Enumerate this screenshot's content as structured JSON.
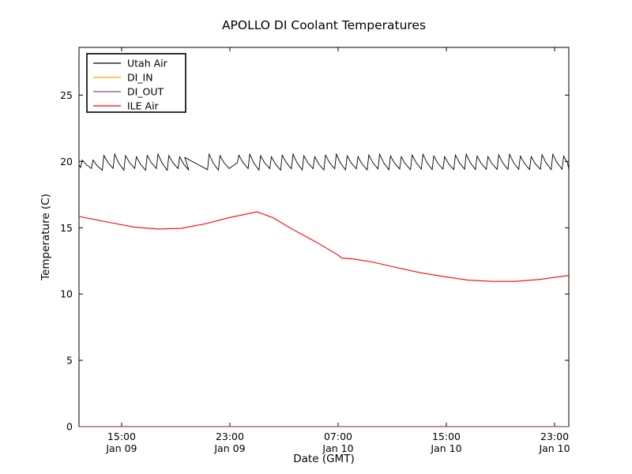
{
  "title": "APOLLO DI Coolant Temperatures",
  "axes": {
    "x": {
      "label": "Date (GMT)",
      "unit": "hours since Jan 09 00:00 GMT",
      "lim": [
        11.85,
        48.05
      ],
      "ticks": [
        {
          "t": 15,
          "time": "15:00",
          "date": "Jan 09"
        },
        {
          "t": 23,
          "time": "23:00",
          "date": "Jan 09"
        },
        {
          "t": 31,
          "time": "07:00",
          "date": "Jan 10"
        },
        {
          "t": 39,
          "time": "15:00",
          "date": "Jan 10"
        },
        {
          "t": 47,
          "time": "23:00",
          "date": "Jan 10"
        }
      ]
    },
    "y": {
      "label": "Temperature (C)",
      "lim": [
        0,
        28.6
      ],
      "ticks": [
        0,
        5,
        10,
        15,
        20,
        25
      ]
    }
  },
  "legend": {
    "position": "upper-left",
    "border_color": "#000000",
    "background": "#ffffff"
  },
  "chart_data": {
    "type": "line",
    "title": "APOLLO DI Coolant Temperatures",
    "xlabel": "Date (GMT)",
    "ylabel": "Temperature (C)",
    "xlim_hours": [
      11.85,
      48.05
    ],
    "ylim": [
      0,
      28.6
    ],
    "grid": false,
    "legend_position": "upper-left",
    "series": [
      {
        "name": "Utah Air",
        "color": "#000000",
        "style": "thermostat-sawtooth",
        "sawtooth": {
          "t_start": 11.85,
          "t_end": 48.05,
          "period_h": 0.8,
          "trough": 19.4,
          "peak": 20.45,
          "start_value": 19.75,
          "pauses": [
            {
              "from": 19.55,
              "to": 21.35,
              "type": "decline"
            },
            {
              "from": 22.9,
              "to": 23.55,
              "type": "rise"
            }
          ]
        },
        "summary": "oscillates ~19.4-20.5 C around 20 C for entire record"
      },
      {
        "name": "DI_IN",
        "color": "#ffa500",
        "style": "flat-zero",
        "points": [
          [
            11.85,
            0
          ],
          [
            48.05,
            0
          ]
        ],
        "summary": "flat at 0 C along bottom axis"
      },
      {
        "name": "DI_OUT",
        "color": "#8b3f96",
        "style": "flat-zero",
        "points": [
          [
            11.85,
            0
          ],
          [
            48.05,
            0
          ]
        ],
        "summary": "flat at 0 C along bottom axis"
      },
      {
        "name": "ILE Air",
        "color": "#ff0000",
        "style": "line",
        "points": [
          [
            11.85,
            15.85
          ],
          [
            13.6,
            15.5
          ],
          [
            15.9,
            15.05
          ],
          [
            17.7,
            14.9
          ],
          [
            19.4,
            14.95
          ],
          [
            21.2,
            15.3
          ],
          [
            22.9,
            15.75
          ],
          [
            24.1,
            16.0
          ],
          [
            25.0,
            16.2
          ],
          [
            26.2,
            15.75
          ],
          [
            27.6,
            14.9
          ],
          [
            29.4,
            13.9
          ],
          [
            30.9,
            13.0
          ],
          [
            31.3,
            12.7
          ],
          [
            32.1,
            12.65
          ],
          [
            33.6,
            12.4
          ],
          [
            35.3,
            12.0
          ],
          [
            37.1,
            11.6
          ],
          [
            38.9,
            11.3
          ],
          [
            40.6,
            11.05
          ],
          [
            42.4,
            10.95
          ],
          [
            44.1,
            10.95
          ],
          [
            45.9,
            11.1
          ],
          [
            47.0,
            11.25
          ],
          [
            48.05,
            11.4
          ]
        ],
        "summary": "starts ~15.9 C, dips ~14.9, peaks 16.2 at 01:00 Jan 10, falls to ~11.0, ends ~11.4"
      }
    ]
  }
}
